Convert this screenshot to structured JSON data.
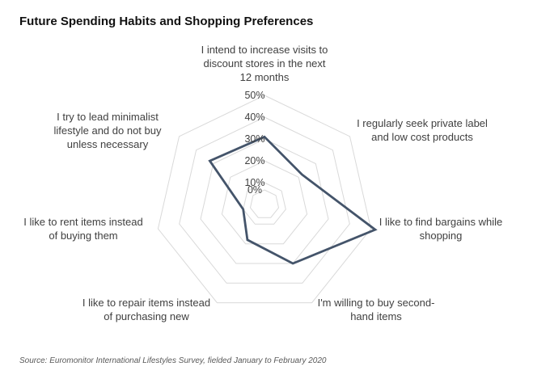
{
  "chart_data": {
    "type": "radar",
    "title": "Future Spending Habits and Shopping Preferences",
    "source": "Source: Euromonitor International Lifestyles Survey, fielded January to February 2020",
    "categories": [
      "I intend to increase visits to discount stores in the next 12 months",
      "I regularly seek private label and low cost products",
      "I like to find bargains while shopping",
      "I'm willing to buy second-hand items",
      "I like to repair items instead of purchasing new",
      "I like to rent items instead of buying them",
      "I try to lead minimalist lifestyle and do not buy unless necessary"
    ],
    "category_lines": [
      [
        "I intend to increase visits to",
        "discount stores in the next",
        "12 months"
      ],
      [
        "I regularly seek private label",
        "and low cost products"
      ],
      [
        "I like to find bargains while",
        "shopping"
      ],
      [
        "I'm willing to buy second-",
        "hand items"
      ],
      [
        "I like to repair items instead",
        "of purchasing new"
      ],
      [
        "I like to rent items instead",
        "of buying them"
      ],
      [
        "I try to lead minimalist",
        "lifestyle and do not buy",
        "unless necessary"
      ]
    ],
    "values": [
      31,
      22,
      52,
      30,
      18,
      10,
      32
    ],
    "rlim": [
      0,
      50
    ],
    "ticks": [
      0,
      10,
      20,
      30,
      40,
      50
    ],
    "tick_labels": [
      "0%",
      "10%",
      "20%",
      "30%",
      "40%",
      "50%"
    ],
    "grid": true,
    "colors": {
      "series": "#44546a",
      "grid": "#d9d9d9",
      "text": "#404040"
    }
  }
}
